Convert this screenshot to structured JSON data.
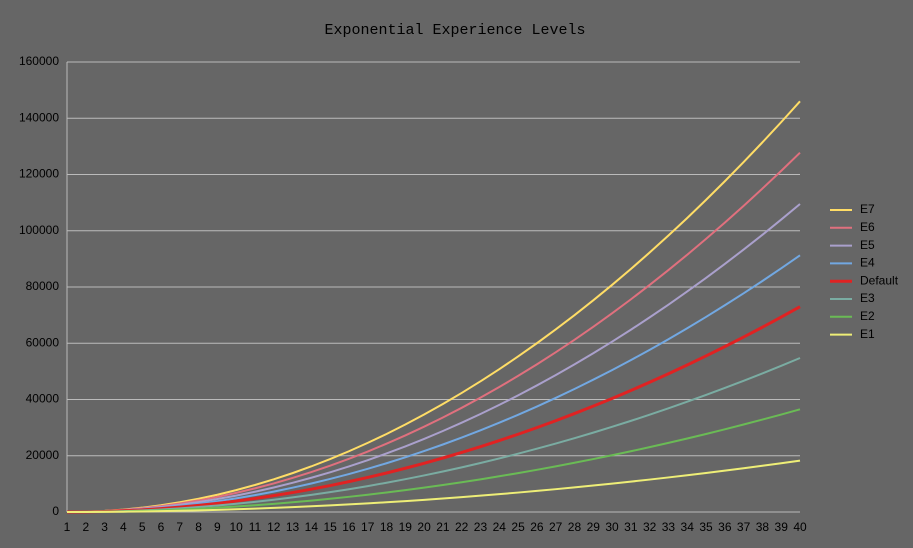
{
  "chart_data": {
    "type": "line",
    "title": "Exponential Experience Levels",
    "x": [
      1,
      2,
      3,
      4,
      5,
      6,
      7,
      8,
      9,
      10,
      11,
      12,
      13,
      14,
      15,
      16,
      17,
      18,
      19,
      20,
      21,
      22,
      23,
      24,
      25,
      26,
      27,
      28,
      29,
      30,
      31,
      32,
      33,
      34,
      35,
      36,
      37,
      38,
      39,
      40
    ],
    "xlim": [
      1,
      40
    ],
    "ylim": [
      0,
      160000
    ],
    "yticks": [
      0,
      20000,
      40000,
      60000,
      80000,
      100000,
      120000,
      140000,
      160000
    ],
    "grid": true,
    "legend": "right",
    "series": [
      {
        "name": "E7",
        "color": "#ffdd66",
        "values": [
          0,
          96,
          384,
          864,
          1536,
          2400,
          3456,
          4704,
          6144,
          7776,
          9600,
          11616,
          13824,
          16224,
          18816,
          21600,
          24576,
          27744,
          31104,
          34656,
          38400,
          42336,
          46464,
          50784,
          55296,
          60000,
          64896,
          69984,
          75264,
          80736,
          86400,
          92256,
          98304,
          104544,
          110976,
          117600,
          124416,
          131424,
          138624,
          146016
        ]
      },
      {
        "name": "E6",
        "color": "#e0707e",
        "values": [
          0,
          84,
          336,
          756,
          1344,
          2100,
          3024,
          4116,
          5376,
          6804,
          8400,
          10164,
          12096,
          14196,
          16464,
          18900,
          21504,
          24276,
          27216,
          30324,
          33600,
          37044,
          40656,
          44436,
          48384,
          52500,
          56784,
          61236,
          65856,
          70644,
          75600,
          80724,
          86016,
          91476,
          97104,
          102900,
          108864,
          114996,
          121296,
          127764
        ]
      },
      {
        "name": "E5",
        "color": "#aaa0cc",
        "values": [
          0,
          72,
          288,
          648,
          1152,
          1800,
          2592,
          3528,
          4608,
          5832,
          7200,
          8712,
          10368,
          12168,
          14112,
          16200,
          18432,
          20808,
          23328,
          25992,
          28800,
          31752,
          34848,
          38088,
          41472,
          45000,
          48672,
          52488,
          56448,
          60552,
          64800,
          69192,
          73728,
          78408,
          83232,
          88200,
          93312,
          98568,
          103968,
          109512
        ]
      },
      {
        "name": "E4",
        "color": "#72a8e2",
        "values": [
          0,
          60,
          240,
          540,
          960,
          1500,
          2160,
          2940,
          3840,
          4860,
          6000,
          7260,
          8640,
          10140,
          11760,
          13500,
          15360,
          17340,
          19440,
          21660,
          24000,
          26460,
          29040,
          31740,
          34560,
          37500,
          40560,
          43740,
          47040,
          50460,
          54000,
          57660,
          61440,
          65340,
          69360,
          73500,
          77760,
          82140,
          86640,
          91260
        ]
      },
      {
        "name": "Default",
        "color": "#e02222",
        "values": [
          0,
          48,
          192,
          432,
          768,
          1200,
          1728,
          2352,
          3072,
          3888,
          4800,
          5808,
          6912,
          8112,
          9408,
          10800,
          12288,
          13872,
          15552,
          17328,
          19200,
          21168,
          23232,
          25392,
          27648,
          30000,
          32448,
          34992,
          37632,
          40368,
          43200,
          46128,
          49152,
          52272,
          55488,
          58800,
          62208,
          65712,
          69312,
          73008
        ]
      },
      {
        "name": "E3",
        "color": "#7aaca2",
        "values": [
          0,
          36,
          144,
          324,
          576,
          900,
          1296,
          1764,
          2304,
          2916,
          3600,
          4356,
          5184,
          6084,
          7056,
          8100,
          9216,
          10404,
          11664,
          12996,
          14400,
          15876,
          17424,
          19044,
          20736,
          22500,
          24336,
          26244,
          28224,
          30276,
          32400,
          34596,
          36864,
          39204,
          41616,
          44100,
          46656,
          49284,
          51984,
          54756
        ]
      },
      {
        "name": "E2",
        "color": "#6abb55",
        "values": [
          0,
          24,
          96,
          216,
          384,
          600,
          864,
          1176,
          1536,
          1944,
          2400,
          2904,
          3456,
          4056,
          4704,
          5400,
          6144,
          6936,
          7776,
          8664,
          9600,
          10584,
          11616,
          12696,
          13824,
          15000,
          16224,
          17496,
          18816,
          20184,
          21600,
          23064,
          24576,
          26136,
          27744,
          29400,
          31104,
          32856,
          34656,
          36504
        ]
      },
      {
        "name": "E1",
        "color": "#eeee77",
        "values": [
          0,
          12,
          48,
          108,
          192,
          300,
          432,
          588,
          768,
          972,
          1200,
          1452,
          1728,
          2028,
          2352,
          2700,
          3072,
          3468,
          3888,
          4332,
          4800,
          5292,
          5808,
          6348,
          6912,
          7500,
          8112,
          8748,
          9408,
          10092,
          10800,
          11532,
          12288,
          13068,
          13872,
          14700,
          15552,
          16428,
          17328,
          18252
        ]
      }
    ]
  }
}
